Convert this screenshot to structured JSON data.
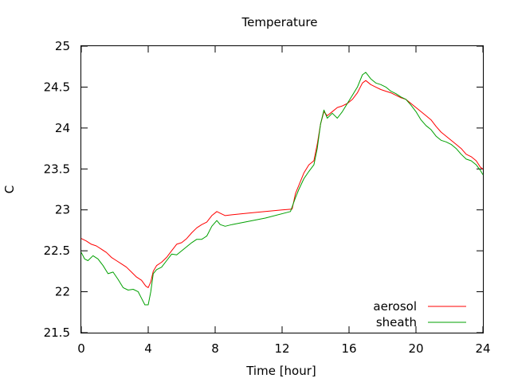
{
  "chart_data": {
    "type": "line",
    "title": "Temperature",
    "xlabel": "Time [hour]",
    "ylabel": "C",
    "xlim": [
      0,
      24
    ],
    "ylim": [
      21.5,
      25
    ],
    "xticks": [
      "0",
      "4",
      "8",
      "12",
      "16",
      "20",
      "24"
    ],
    "xtick_values": [
      0,
      4,
      8,
      12,
      16,
      20,
      24
    ],
    "yticks": [
      "21.5",
      "22",
      "22.5",
      "23",
      "23.5",
      "24",
      "24.5",
      "25"
    ],
    "ytick_values": [
      21.5,
      22,
      22.5,
      23,
      23.5,
      24,
      24.5,
      25
    ],
    "grid": false,
    "legend_position": "bottom-right",
    "series": [
      {
        "name": "aerosol",
        "color": "#ff0000",
        "x": [
          0,
          0.3,
          0.6,
          0.9,
          1.2,
          1.5,
          1.8,
          2.1,
          2.4,
          2.7,
          3.0,
          3.3,
          3.6,
          3.85,
          4.0,
          4.15,
          4.3,
          4.5,
          4.8,
          5.1,
          5.4,
          5.7,
          6.0,
          6.3,
          6.6,
          6.9,
          7.2,
          7.5,
          7.8,
          8.1,
          8.4,
          8.6,
          9.0,
          10.0,
          11.0,
          12.0,
          12.6,
          12.8,
          13.0,
          13.3,
          13.6,
          13.9,
          14.1,
          14.3,
          14.5,
          14.7,
          15.0,
          15.3,
          15.6,
          15.9,
          16.2,
          16.5,
          16.8,
          17.0,
          17.3,
          17.6,
          17.9,
          18.2,
          18.5,
          18.8,
          19.1,
          19.4,
          19.7,
          20.0,
          20.3,
          20.6,
          20.9,
          21.2,
          21.5,
          21.8,
          22.1,
          22.4,
          22.7,
          23.0,
          23.3,
          23.6,
          23.85,
          24.0
        ],
        "y": [
          22.65,
          22.62,
          22.58,
          22.56,
          22.52,
          22.48,
          22.42,
          22.38,
          22.34,
          22.3,
          22.24,
          22.18,
          22.14,
          22.07,
          22.05,
          22.12,
          22.25,
          22.32,
          22.36,
          22.42,
          22.5,
          22.58,
          22.6,
          22.65,
          22.72,
          22.78,
          22.82,
          22.85,
          22.93,
          22.98,
          22.95,
          22.93,
          22.94,
          22.96,
          22.98,
          23.0,
          23.01,
          23.2,
          23.3,
          23.45,
          23.55,
          23.6,
          23.8,
          24.05,
          24.2,
          24.15,
          24.2,
          24.25,
          24.27,
          24.3,
          24.35,
          24.43,
          24.55,
          24.58,
          24.53,
          24.5,
          24.47,
          24.45,
          24.43,
          24.4,
          24.37,
          24.35,
          24.3,
          24.25,
          24.2,
          24.15,
          24.1,
          24.02,
          23.95,
          23.9,
          23.85,
          23.8,
          23.75,
          23.68,
          23.65,
          23.6,
          23.52,
          23.5
        ]
      },
      {
        "name": "sheath",
        "color": "#00a000",
        "x": [
          0,
          0.2,
          0.4,
          0.7,
          1.0,
          1.3,
          1.6,
          1.9,
          2.2,
          2.5,
          2.8,
          3.1,
          3.4,
          3.6,
          3.8,
          4.0,
          4.15,
          4.3,
          4.5,
          4.8,
          5.1,
          5.4,
          5.7,
          6.0,
          6.3,
          6.6,
          6.9,
          7.2,
          7.5,
          7.8,
          8.1,
          8.3,
          8.6,
          9.0,
          10.0,
          11.0,
          12.5,
          12.8,
          13.0,
          13.3,
          13.6,
          13.9,
          14.1,
          14.3,
          14.5,
          14.7,
          15.0,
          15.3,
          15.6,
          15.9,
          16.2,
          16.5,
          16.8,
          17.0,
          17.3,
          17.6,
          17.9,
          18.2,
          18.5,
          18.8,
          19.1,
          19.4,
          19.7,
          20.0,
          20.3,
          20.6,
          20.9,
          21.2,
          21.5,
          21.8,
          22.1,
          22.4,
          22.7,
          23.0,
          23.3,
          23.6,
          23.85,
          24.0
        ],
        "y": [
          22.48,
          22.4,
          22.38,
          22.44,
          22.4,
          22.32,
          22.22,
          22.24,
          22.15,
          22.05,
          22.02,
          22.03,
          22.0,
          21.92,
          21.84,
          21.84,
          22.0,
          22.22,
          22.27,
          22.3,
          22.38,
          22.46,
          22.45,
          22.5,
          22.55,
          22.6,
          22.64,
          22.64,
          22.68,
          22.8,
          22.87,
          22.82,
          22.8,
          22.82,
          22.86,
          22.9,
          22.98,
          23.15,
          23.25,
          23.38,
          23.47,
          23.55,
          23.75,
          24.05,
          24.22,
          24.12,
          24.18,
          24.12,
          24.2,
          24.3,
          24.4,
          24.5,
          24.65,
          24.68,
          24.6,
          24.55,
          24.53,
          24.5,
          24.45,
          24.42,
          24.38,
          24.35,
          24.28,
          24.2,
          24.1,
          24.03,
          23.98,
          23.9,
          23.85,
          23.83,
          23.8,
          23.75,
          23.68,
          23.62,
          23.6,
          23.55,
          23.48,
          23.43
        ]
      }
    ]
  }
}
